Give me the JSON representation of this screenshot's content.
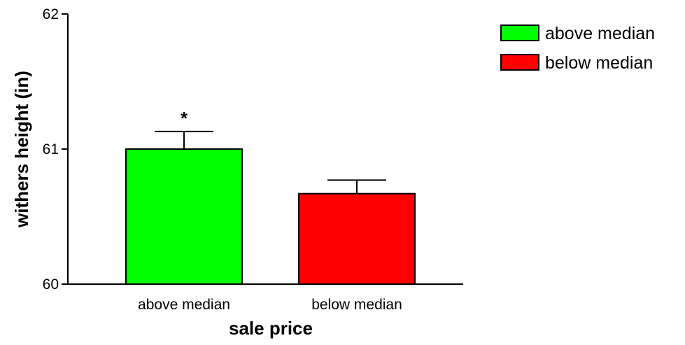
{
  "chart_data": {
    "type": "bar",
    "categories": [
      "above median",
      "below median"
    ],
    "values": [
      61.0,
      60.67
    ],
    "errors": [
      0.13,
      0.1
    ],
    "colors": [
      "#00ff00",
      "#ff0000"
    ],
    "xlabel": "sale price",
    "ylabel": "withers height (in)",
    "ylim": [
      60,
      62
    ],
    "yticks": [
      60,
      61,
      62
    ],
    "legend": {
      "placement": "top-right",
      "entries": [
        {
          "label": "above median",
          "color": "#00ff00"
        },
        {
          "label": "below median",
          "color": "#ff0000"
        }
      ]
    },
    "annotations": [
      {
        "category": "above median",
        "text": "*"
      }
    ],
    "grid": false
  }
}
